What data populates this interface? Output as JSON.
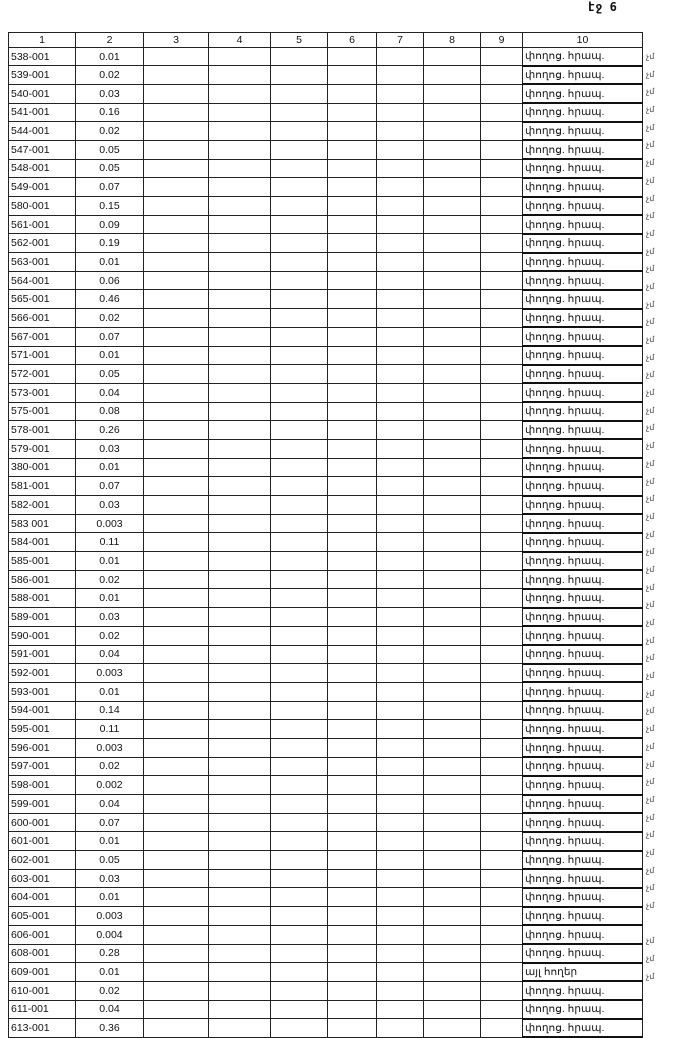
{
  "page_label": "էջ 6",
  "headers": [
    "1",
    "2",
    "3",
    "4",
    "5",
    "6",
    "7",
    "8",
    "9",
    "10"
  ],
  "rows": [
    [
      "538-001",
      "0.01",
      "փողոց. հրապ.",
      "չմ"
    ],
    [
      "539-001",
      "0.02",
      "փողոց. հրապ.",
      "չմ"
    ],
    [
      "540-001",
      "0.03",
      "փողոց. հրապ.",
      "չմ"
    ],
    [
      "541-001",
      "0.16",
      "փողոց. հրապ.",
      "չմ"
    ],
    [
      "544-001",
      "0.02",
      "փողոց. հրապ.",
      "չմ"
    ],
    [
      "547-001",
      "0.05",
      "փողոց. հրապ.",
      "չմ"
    ],
    [
      "548-001",
      "0.05",
      "փողոց. հրապ.",
      "չմ"
    ],
    [
      "549-001",
      "0.07",
      "փողոց. հրապ.",
      "չմ"
    ],
    [
      "580-001",
      "0.15",
      "փողոց. հրապ.",
      "չմ"
    ],
    [
      "561-001",
      "0.09",
      "փողոց. հրապ.",
      "չմ"
    ],
    [
      "562-001",
      "0.19",
      "փողոց. հրապ.",
      "չմ"
    ],
    [
      "563-001",
      "0.01",
      "փողոց. հրապ.",
      "չմ"
    ],
    [
      "564-001",
      "0.06",
      "փողոց. հրապ.",
      "չմ"
    ],
    [
      "565-001",
      "0.46",
      "փողոց. հրապ.",
      "չմ"
    ],
    [
      "566-001",
      "0.02",
      "փողոց. հրապ.",
      "չմ"
    ],
    [
      "567-001",
      "0.07",
      "փողոց. հրապ.",
      "չմ"
    ],
    [
      "571-001",
      "0.01",
      "փողոց. հրապ.",
      "չմ"
    ],
    [
      "572-001",
      "0.05",
      "փողոց. հրապ.",
      "չմ"
    ],
    [
      "573-001",
      "0.04",
      "փողոց. հրապ.",
      "չմ"
    ],
    [
      "575-001",
      "0.08",
      "փողոց. հրապ.",
      "չմ"
    ],
    [
      "578-001",
      "0.26",
      "փողոց. հրապ.",
      "չմ"
    ],
    [
      "579-001",
      "0.03",
      "փողոց. հրապ.",
      "չմ"
    ],
    [
      "380-001",
      "0.01",
      "փողոց. հրապ.",
      "չմ"
    ],
    [
      "581-001",
      "0.07",
      "փողոց. հրապ.",
      "չմ"
    ],
    [
      "582-001",
      "0.03",
      "փողոց. հրապ.",
      "չմ"
    ],
    [
      "583 001",
      "0.003",
      "փողոց. հրապ.",
      "չմ"
    ],
    [
      "584-001",
      "0.11",
      "փողոց. հրապ.",
      "չմ"
    ],
    [
      "585-001",
      "0.01",
      "փողոց. հրապ.",
      "չմ"
    ],
    [
      "586-001",
      "0.02",
      "փողոց. հրապ.",
      "չմ"
    ],
    [
      "588-001",
      "0.01",
      "փողոց. հրապ.",
      "չմ"
    ],
    [
      "589-001",
      "0.03",
      "փողոց. հրապ.",
      "չմ"
    ],
    [
      "590-001",
      "0.02",
      "փողոց. հրապ.",
      "չմ"
    ],
    [
      "591-001",
      "0.04",
      "փողոց. հրապ.",
      "չմ"
    ],
    [
      "592-001",
      "0.003",
      "փողոց. հրապ.",
      "չմ"
    ],
    [
      "593-001",
      "0.01",
      "փողոց. հրապ.",
      "չմ"
    ],
    [
      "594-001",
      "0.14",
      "փողոց. հրապ.",
      "չմ"
    ],
    [
      "595-001",
      "0.11",
      "փողոց. հրապ.",
      "չմ"
    ],
    [
      "596-001",
      "0.003",
      "փողոց. հրապ.",
      "չմ"
    ],
    [
      "597-001",
      "0.02",
      "փողոց. հրապ.",
      "չմ"
    ],
    [
      "598-001",
      "0.002",
      "փողոց. հրապ.",
      "չմ"
    ],
    [
      "599-001",
      "0.04",
      "փողոց. հրապ.",
      "չմ"
    ],
    [
      "600-001",
      "0.07",
      "փողոց. հրապ.",
      "չմ"
    ],
    [
      "601-001",
      "0.01",
      "փողոց. հրապ.",
      "չմ"
    ],
    [
      "602-001",
      "0.05",
      "փողոց. հրապ.",
      "չմ"
    ],
    [
      "603-001",
      "0.03",
      "փողոց. հրապ.",
      "չմ"
    ],
    [
      "604-001",
      "0.01",
      "փողոց. հրապ.",
      "չմ"
    ],
    [
      "605-001",
      "0.003",
      "փողոց. հրապ.",
      "չմ"
    ],
    [
      "606-001",
      "0.004",
      "փողոց. հրապ.",
      "չմ"
    ],
    [
      "608-001",
      "0.28",
      "փողոց. հրապ.",
      "չմ"
    ],
    [
      "609-001",
      "0.01",
      "այլ հողեր",
      ""
    ],
    [
      "610-001",
      "0.02",
      "փողոց. հրապ.",
      "չմ"
    ],
    [
      "611-001",
      "0.04",
      "փողոց. հրապ.",
      "չմ"
    ],
    [
      "613-001",
      "0.36",
      "փողոց. հրապ.",
      "չմ"
    ]
  ]
}
